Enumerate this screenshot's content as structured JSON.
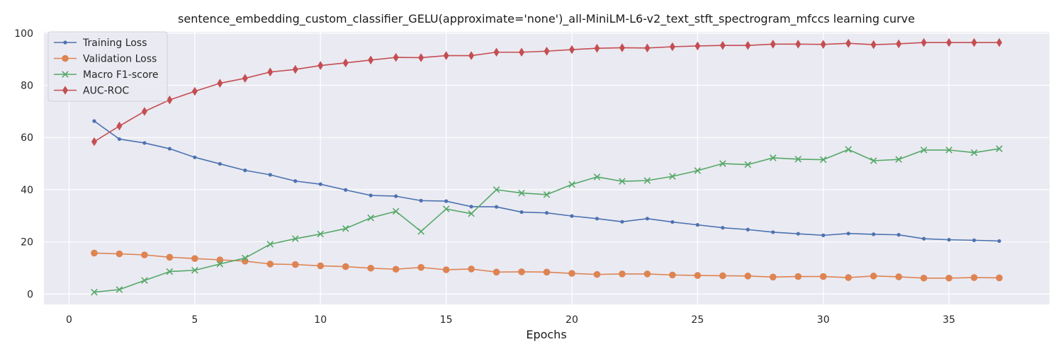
{
  "chart_data": {
    "type": "line",
    "title": "sentence_embedding_custom_classifier_GELU(approximate='none')_all-MiniLM-L6-v2_text_stft_spectrogram_mfccs learning curve",
    "xlabel": "Epochs",
    "ylabel": "",
    "xlim": [
      -1,
      39
    ],
    "ylim": [
      -4,
      100.5
    ],
    "x_ticks": [
      0,
      5,
      10,
      15,
      20,
      25,
      30,
      35
    ],
    "y_ticks": [
      0,
      20,
      40,
      60,
      80,
      100
    ],
    "grid": true,
    "legend_position": "top-left",
    "x": [
      1,
      2,
      3,
      4,
      5,
      6,
      7,
      8,
      9,
      10,
      11,
      12,
      13,
      14,
      15,
      16,
      17,
      18,
      19,
      20,
      21,
      22,
      23,
      24,
      25,
      26,
      27,
      28,
      29,
      30,
      31,
      32,
      33,
      34,
      35,
      36,
      37
    ],
    "series": [
      {
        "name": "Training Loss",
        "color": "#4c72b0",
        "marker": "dot",
        "values": [
          66.3,
          59.4,
          57.9,
          55.7,
          52.4,
          49.9,
          47.4,
          45.7,
          43.3,
          42.1,
          39.9,
          37.8,
          37.5,
          35.8,
          35.6,
          33.5,
          33.4,
          31.4,
          31.1,
          29.9,
          28.9,
          27.7,
          28.9,
          27.6,
          26.5,
          25.4,
          24.7,
          23.7,
          23.1,
          22.5,
          23.2,
          22.9,
          22.7,
          21.2,
          20.8,
          20.6,
          20.3
        ]
      },
      {
        "name": "Validation Loss",
        "color": "#dd8452",
        "marker": "circle",
        "values": [
          15.7,
          15.4,
          15.0,
          14.1,
          13.6,
          13.1,
          12.6,
          11.5,
          11.3,
          10.8,
          10.5,
          9.9,
          9.5,
          10.2,
          9.3,
          9.6,
          8.4,
          8.5,
          8.4,
          7.9,
          7.5,
          7.7,
          7.7,
          7.3,
          7.1,
          7.0,
          6.9,
          6.5,
          6.7,
          6.7,
          6.3,
          6.9,
          6.6,
          6.1,
          6.1,
          6.3,
          6.2
        ]
      },
      {
        "name": "Macro F1-score",
        "color": "#55a868",
        "marker": "x",
        "values": [
          0.7,
          1.7,
          5.2,
          8.6,
          9.1,
          11.5,
          13.8,
          19.1,
          21.2,
          23.0,
          25.1,
          29.2,
          31.7,
          24.0,
          32.6,
          30.8,
          40.0,
          38.7,
          38.1,
          42.0,
          44.9,
          43.2,
          43.5,
          45.1,
          47.3,
          50.0,
          49.6,
          52.2,
          51.7,
          51.5,
          55.4,
          51.1,
          51.6,
          55.2,
          55.2,
          54.2,
          55.7
        ]
      },
      {
        "name": "AUC-ROC",
        "color": "#c44e52",
        "marker": "diamond",
        "values": [
          58.4,
          64.4,
          70.0,
          74.4,
          77.7,
          80.8,
          82.7,
          85.1,
          86.1,
          87.6,
          88.6,
          89.7,
          90.7,
          90.6,
          91.4,
          91.4,
          92.7,
          92.7,
          93.1,
          93.7,
          94.2,
          94.4,
          94.3,
          94.8,
          95.1,
          95.3,
          95.3,
          95.8,
          95.8,
          95.7,
          96.1,
          95.6,
          95.9,
          96.4,
          96.4,
          96.4,
          96.4
        ]
      }
    ]
  }
}
